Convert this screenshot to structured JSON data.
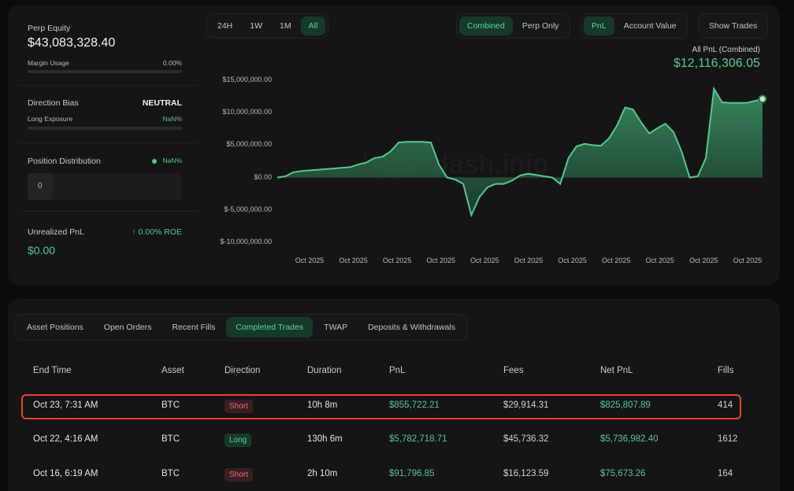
{
  "stats": {
    "perp_equity_label": "Perp Equity",
    "perp_equity_value": "$43,083,328.40",
    "margin_usage_label": "Margin Usage",
    "margin_usage_value": "0.00%",
    "margin_usage_fraction": 0,
    "direction_bias_label": "Direction Bias",
    "direction_bias_value": "NEUTRAL",
    "long_exposure_label": "Long Exposure",
    "long_exposure_value": "NaN%",
    "position_distribution_label": "Position Distribution",
    "position_distribution_value": "NaN%",
    "position_distribution_count": "0",
    "unrealized_pnl_label": "Unrealized PnL",
    "unrealized_pnl_roe": "0.00% ROE",
    "unrealized_pnl_value": "$0.00"
  },
  "time_range": {
    "options": [
      "24H",
      "1W",
      "1M",
      "All"
    ],
    "selected": "All"
  },
  "chart_controls": {
    "mode_options": [
      "Combined",
      "Perp Only"
    ],
    "mode_selected": "Combined",
    "metric_options": [
      "PnL",
      "Account Value"
    ],
    "metric_selected": "PnL",
    "show_trades_label": "Show Trades"
  },
  "chart_header": {
    "label": "All PnL (Combined)",
    "value": "$12,116,306.05"
  },
  "watermark": "hyperdash.info",
  "colors": {
    "accent": "#53c98a",
    "short": "#e0706f",
    "highlight": "#e2452f",
    "background": "#0b0b0c"
  },
  "chart_data": {
    "type": "area",
    "title": "All PnL (Combined)",
    "y_tick_labels": [
      "$15,000,000.00",
      "$10,000,000.00",
      "$5,000,000.00",
      "$0.00",
      "$-5,000,000.00",
      "$-10,000,000.00"
    ],
    "y_ticks": [
      15000000,
      10000000,
      5000000,
      0,
      -5000000,
      -10000000
    ],
    "ylim": [
      -10000000,
      15000000
    ],
    "x_tick_labels": [
      "Oct 2025",
      "Oct 2025",
      "Oct 2025",
      "Oct 2025",
      "Oct 2025",
      "Oct 2025",
      "Oct 2025",
      "Oct 2025",
      "Oct 2025",
      "Oct 2025",
      "Oct 2025"
    ],
    "grid": false,
    "series": [
      {
        "x": [
          0,
          1,
          2,
          3,
          4,
          5,
          6,
          7,
          8,
          9,
          10,
          11,
          12,
          13,
          14,
          15,
          16,
          17,
          18,
          19,
          20,
          21,
          22,
          23,
          24,
          25,
          26,
          27,
          28,
          29,
          30,
          31,
          32,
          33,
          34,
          35,
          36,
          37,
          38,
          39,
          40,
          41,
          42,
          43,
          44,
          45,
          46,
          47,
          48,
          49,
          50,
          51,
          52,
          53,
          54,
          55,
          56,
          57,
          58,
          59,
          60
        ],
        "values": [
          0,
          200000,
          800000,
          1000000,
          1100000,
          1200000,
          1300000,
          1400000,
          1500000,
          1600000,
          2000000,
          2300000,
          3000000,
          3200000,
          4000000,
          5400000,
          5500000,
          5500000,
          5500000,
          5400000,
          2000000,
          0,
          -300000,
          -1000000,
          -5800000,
          -3000000,
          -1500000,
          -1000000,
          -1000000,
          -500000,
          300000,
          600000,
          400000,
          200000,
          0,
          -1000000,
          3000000,
          4800000,
          5200000,
          5000000,
          4900000,
          6000000,
          8000000,
          10800000,
          10500000,
          8500000,
          6800000,
          7600000,
          8300000,
          7000000,
          4000000,
          0,
          200000,
          3000000,
          13700000,
          11600000,
          11500000,
          11500000,
          11500000,
          11800000,
          12116306
        ],
        "name": ""
      }
    ]
  },
  "table": {
    "tabs": [
      "Asset Positions",
      "Open Orders",
      "Recent Fills",
      "Completed Trades",
      "TWAP",
      "Deposits & Withdrawals"
    ],
    "active_tab": "Completed Trades",
    "columns": [
      "End Time",
      "Asset",
      "Direction",
      "Duration",
      "PnL",
      "Fees",
      "Net PnL",
      "Fills"
    ],
    "rows": [
      {
        "end_time": "Oct 23, 7:31 AM",
        "asset": "BTC",
        "direction": "Short",
        "duration": "10h 8m",
        "pnl": "$855,722.21",
        "fees": "$29,914.31",
        "net_pnl": "$825,807.89",
        "fills": "414",
        "highlighted": true
      },
      {
        "end_time": "Oct 22, 4:16 AM",
        "asset": "BTC",
        "direction": "Long",
        "duration": "130h 6m",
        "pnl": "$5,782,718.71",
        "fees": "$45,736.32",
        "net_pnl": "$5,736,982.40",
        "fills": "1612",
        "highlighted": false
      },
      {
        "end_time": "Oct 16, 6:19 AM",
        "asset": "BTC",
        "direction": "Short",
        "duration": "2h 10m",
        "pnl": "$91,796.85",
        "fees": "$16,123.59",
        "net_pnl": "$75,673.26",
        "fills": "164",
        "highlighted": false
      }
    ]
  }
}
